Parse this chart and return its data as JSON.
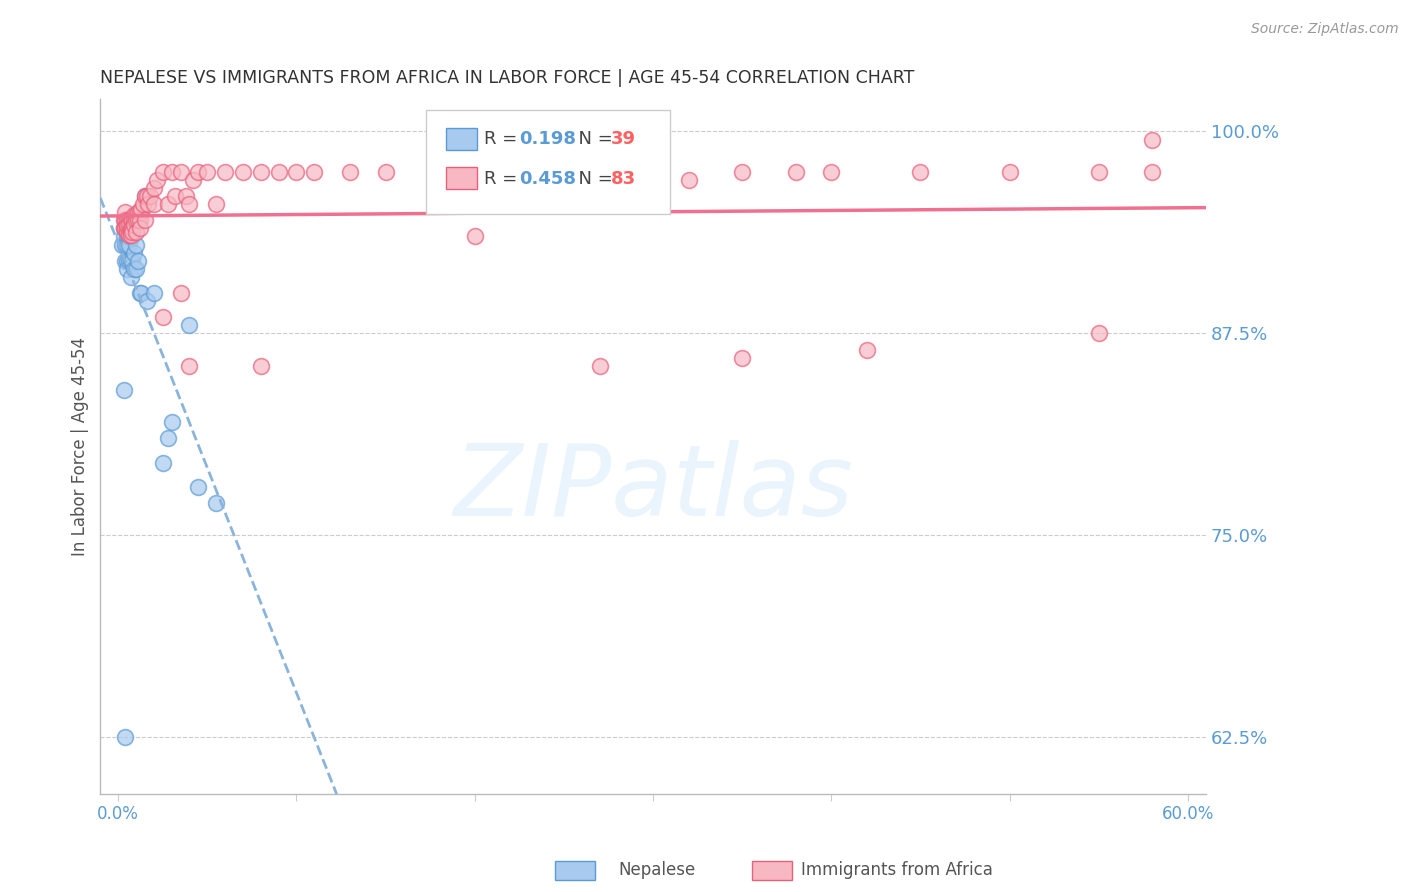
{
  "title": "NEPALESE VS IMMIGRANTS FROM AFRICA IN LABOR FORCE | AGE 45-54 CORRELATION CHART",
  "source": "Source: ZipAtlas.com",
  "ylabel": "In Labor Force | Age 45-54",
  "xlim": [
    -1,
    61
  ],
  "ylim": [
    59,
    102
  ],
  "xtick_positions": [
    0,
    10,
    20,
    30,
    40,
    50,
    60
  ],
  "xticklabels": [
    "0.0%",
    "",
    "",
    "",
    "",
    "",
    "60.0%"
  ],
  "yticks_right": [
    62.5,
    75.0,
    87.5,
    100.0
  ],
  "ytick_labels_right": [
    "62.5%",
    "75.0%",
    "87.5%",
    "100.0%"
  ],
  "blue_color": "#A8CAEE",
  "pink_color": "#F7B8C4",
  "blue_edge_color": "#5B9BD5",
  "pink_edge_color": "#E8607A",
  "blue_line_color": "#8AB4DC",
  "pink_line_color": "#F07090",
  "legend_blue_R": "0.198",
  "legend_blue_N": "39",
  "legend_pink_R": "0.458",
  "legend_pink_N": "83",
  "watermark": "ZIPatlas",
  "legend_label_blue": "Nepalese",
  "legend_label_pink": "Immigrants from Africa",
  "blue_scatter_x": [
    0.2,
    0.3,
    0.3,
    0.4,
    0.4,
    0.4,
    0.5,
    0.5,
    0.5,
    0.5,
    0.5,
    0.6,
    0.6,
    0.6,
    0.6,
    0.7,
    0.7,
    0.7,
    0.7,
    0.8,
    0.8,
    0.9,
    0.9,
    1.0,
    1.0,
    1.1,
    1.2,
    1.3,
    1.5,
    1.6,
    2.0,
    2.5,
    2.8,
    3.0,
    4.0,
    4.5,
    5.5,
    0.3,
    0.4
  ],
  "blue_scatter_y": [
    93.0,
    93.5,
    94.0,
    94.5,
    93.0,
    92.0,
    93.5,
    94.0,
    93.0,
    92.0,
    91.5,
    93.5,
    94.0,
    93.0,
    92.0,
    93.5,
    94.0,
    92.0,
    91.0,
    93.5,
    92.0,
    92.5,
    91.5,
    93.0,
    91.5,
    92.0,
    90.0,
    90.0,
    96.0,
    89.5,
    90.0,
    79.5,
    81.0,
    82.0,
    88.0,
    78.0,
    77.0,
    84.0,
    62.5
  ],
  "pink_scatter_x": [
    0.3,
    0.3,
    0.4,
    0.4,
    0.4,
    0.5,
    0.5,
    0.5,
    0.5,
    0.6,
    0.6,
    0.6,
    0.6,
    0.7,
    0.7,
    0.7,
    0.7,
    0.8,
    0.8,
    0.8,
    0.9,
    0.9,
    0.9,
    1.0,
    1.0,
    1.0,
    1.1,
    1.1,
    1.2,
    1.2,
    1.2,
    1.3,
    1.4,
    1.5,
    1.5,
    1.6,
    1.7,
    1.8,
    2.0,
    2.0,
    2.2,
    2.5,
    2.8,
    3.0,
    3.2,
    3.5,
    3.8,
    4.0,
    4.2,
    4.5,
    5.0,
    5.5,
    6.0,
    7.0,
    8.0,
    9.0,
    10.0,
    11.0,
    13.0,
    15.0,
    18.0,
    22.0,
    25.0,
    27.0,
    30.0,
    32.0,
    35.0,
    38.0,
    40.0,
    45.0,
    50.0,
    55.0,
    58.0,
    2.5,
    3.5,
    4.0,
    8.0,
    20.0,
    27.0,
    35.0,
    42.0,
    55.0,
    58.0
  ],
  "pink_scatter_y": [
    94.5,
    94.0,
    94.5,
    94.0,
    95.0,
    94.5,
    94.0,
    93.8,
    94.2,
    94.5,
    94.3,
    93.8,
    93.6,
    94.5,
    94.0,
    93.8,
    93.6,
    94.5,
    94.0,
    93.8,
    94.8,
    94.5,
    94.2,
    94.8,
    94.5,
    93.8,
    95.0,
    94.5,
    95.0,
    94.5,
    94.0,
    95.2,
    95.5,
    96.0,
    94.5,
    96.0,
    95.5,
    96.0,
    96.5,
    95.5,
    97.0,
    97.5,
    95.5,
    97.5,
    96.0,
    97.5,
    96.0,
    95.5,
    97.0,
    97.5,
    97.5,
    95.5,
    97.5,
    97.5,
    97.5,
    97.5,
    97.5,
    97.5,
    97.5,
    97.5,
    97.5,
    97.0,
    96.0,
    96.0,
    96.5,
    97.0,
    97.5,
    97.5,
    97.5,
    97.5,
    97.5,
    97.5,
    97.5,
    88.5,
    90.0,
    85.5,
    85.5,
    93.5,
    85.5,
    86.0,
    86.5,
    87.5,
    99.5
  ],
  "background_color": "#FFFFFF",
  "grid_color": "#CCCCCC",
  "title_color": "#333333",
  "axis_label_color": "#555555",
  "right_tick_color": "#5B9BD5",
  "watermark_color": "#D0E8FA",
  "watermark_alpha": 0.45,
  "legend_R_color": "#5B9BD5",
  "legend_N_color": "#FF6060"
}
